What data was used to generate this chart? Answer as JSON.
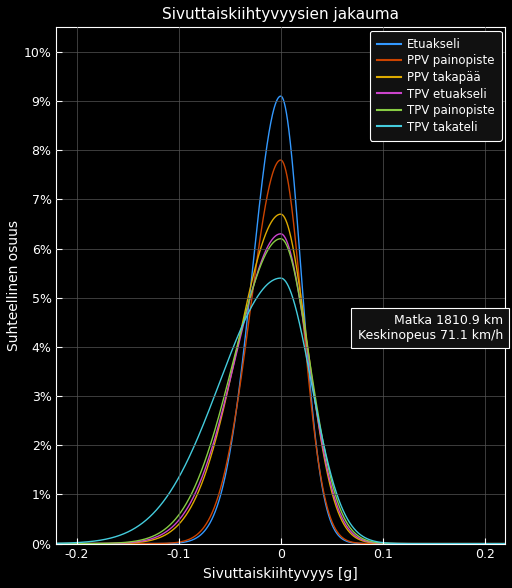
{
  "title": "Sivuttaiskiihtyvyysien jakauma",
  "xlabel": "Sivuttaiskiihtyvyys [g]",
  "ylabel": "Suhteellinen osuus",
  "xlim": [
    -0.22,
    0.22
  ],
  "ylim": [
    0,
    0.105
  ],
  "annotation": "Matka 1810.9 km\nKeskinopeus 71.1 km/h",
  "background_color": "#000000",
  "text_color": "#ffffff",
  "grid_color": "#555555",
  "series": [
    {
      "label": "Etuakseli",
      "color": "#3399ff",
      "std_l": 0.028,
      "std_r": 0.02,
      "peak": 0.091
    },
    {
      "label": "PPV painopiste",
      "color": "#cc4400",
      "std_l": 0.03,
      "std_r": 0.021,
      "peak": 0.078
    },
    {
      "label": "PPV takapää",
      "color": "#ddaa00",
      "std_l": 0.042,
      "std_r": 0.026,
      "peak": 0.067
    },
    {
      "label": "TPV etuakseli",
      "color": "#cc44cc",
      "std_l": 0.044,
      "std_r": 0.027,
      "peak": 0.063
    },
    {
      "label": "TPV painopiste",
      "color": "#88cc44",
      "std_l": 0.046,
      "std_r": 0.028,
      "peak": 0.062
    },
    {
      "label": "TPV takateli",
      "color": "#44ccdd",
      "std_l": 0.06,
      "std_r": 0.03,
      "peak": 0.054
    }
  ],
  "yticks": [
    0,
    0.01,
    0.02,
    0.03,
    0.04,
    0.05,
    0.06,
    0.07,
    0.08,
    0.09,
    0.1
  ],
  "ytick_labels": [
    "0%",
    "1%",
    "2%",
    "3%",
    "4%",
    "5%",
    "6%",
    "7%",
    "8%",
    "9%",
    "10%"
  ],
  "xticks": [
    -0.2,
    -0.1,
    0,
    0.1,
    0.2
  ],
  "xtick_labels": [
    "-0.2",
    "-0.1",
    "0",
    "0.1",
    "0.2"
  ]
}
